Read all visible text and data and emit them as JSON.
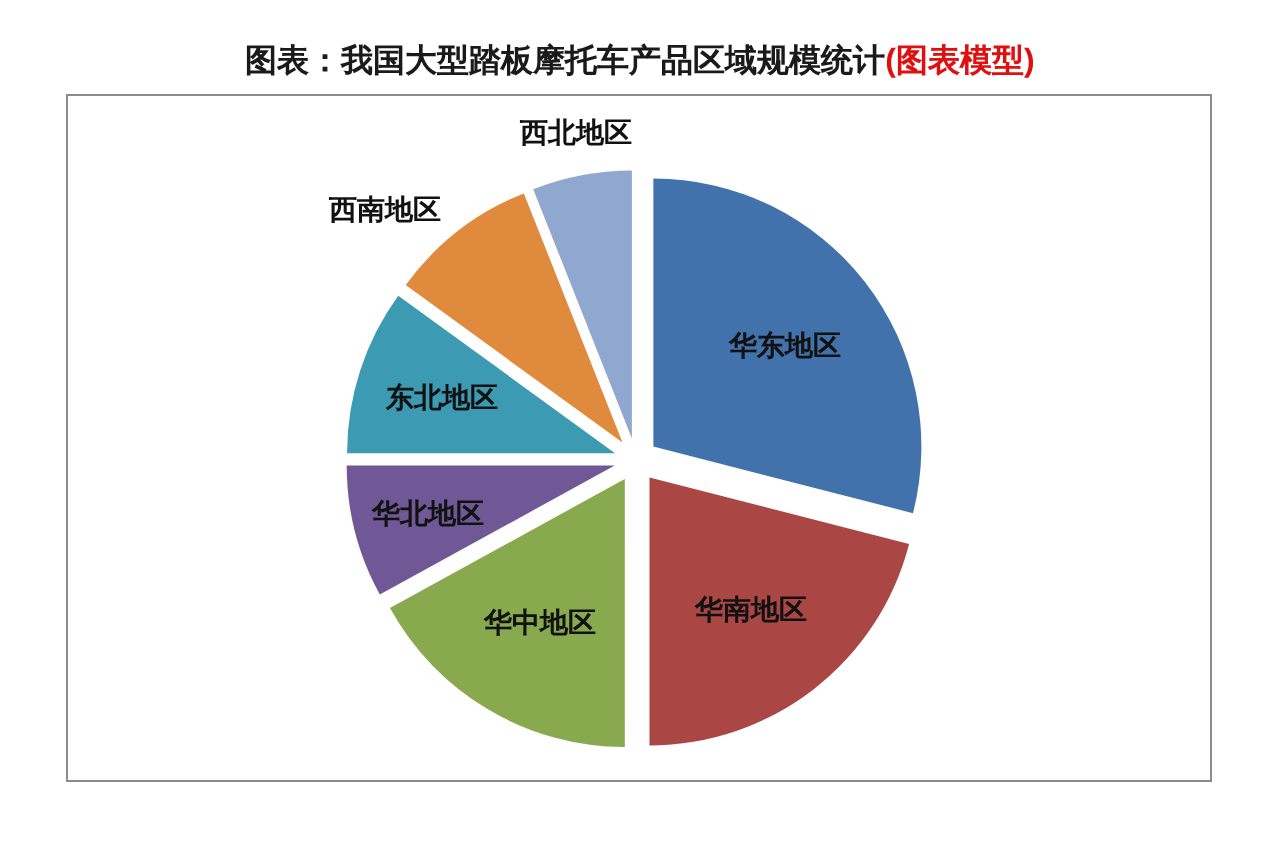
{
  "chart_data": {
    "type": "pie",
    "title": "图表：我国大型踏板摩托车产品区域规模统计",
    "subtitle": "(图表模型)",
    "categories": [
      "华东地区",
      "华南地区",
      "华中地区",
      "华北地区",
      "东北地区",
      "西南地区",
      "西北地区"
    ],
    "values": [
      29,
      21,
      17,
      8,
      10,
      9,
      6
    ],
    "colors": [
      "#4272ab",
      "#aa4644",
      "#89a94e",
      "#705896",
      "#3c9bb3",
      "#e08a3e",
      "#90a8cf"
    ]
  }
}
